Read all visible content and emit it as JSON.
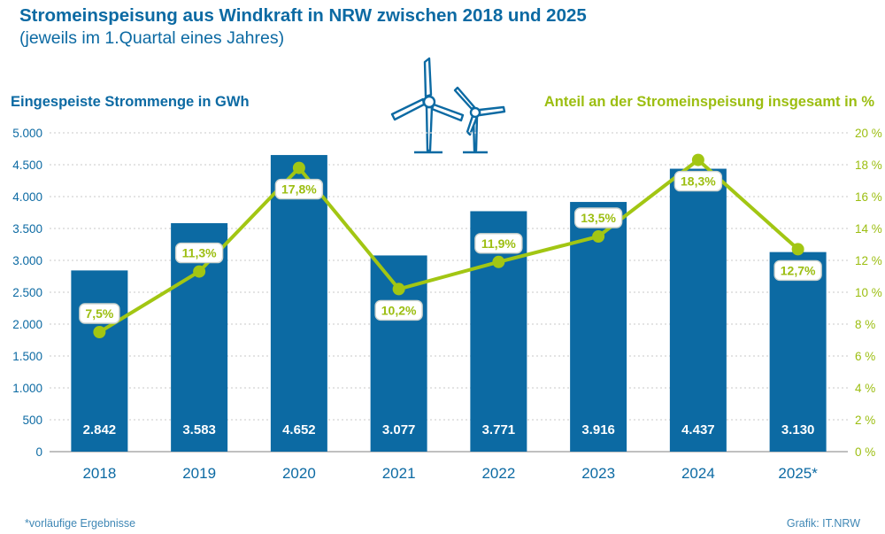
{
  "header": {
    "title": "Stromeinspeisung aus Windkraft in NRW zwischen 2018 und 2025",
    "subtitle": "(jeweils im 1.Quartal eines Jahres)"
  },
  "decoration": {
    "icon": "wind-turbines-icon"
  },
  "footer": {
    "note": "*vorläufige Ergebnisse",
    "credit": "Grafik: IT.NRW"
  },
  "colors": {
    "blue": "#0c6aa3",
    "green": "#a2c613",
    "green_text": "#9cbe11",
    "grid_line": "#d4d4d4",
    "baseline": "#9b9b9b",
    "badge_border": "#cdd3ce",
    "badge_fill": "#ffffff",
    "bar_label": "#ffffff"
  },
  "chart_data": {
    "type": "bar",
    "title": "Stromeinspeisung aus Windkraft in NRW zwischen 2018 und 2025 (jeweils im 1.Quartal eines Jahres)",
    "categories": [
      "2018",
      "2019",
      "2020",
      "2021",
      "2022",
      "2023",
      "2024",
      "2025*"
    ],
    "series": [
      {
        "name": "Eingespeiste Strommenge in GWh",
        "type": "bar",
        "axis": "left",
        "values": [
          2842,
          3583,
          4652,
          3077,
          3771,
          3916,
          4437,
          3130
        ],
        "labels": [
          "2.842",
          "3.583",
          "4.652",
          "3.077",
          "3.771",
          "3.916",
          "4.437",
          "3.130"
        ]
      },
      {
        "name": "Anteil an der Stromeinspeisung insgesamt in %",
        "type": "line",
        "axis": "right",
        "values": [
          7.5,
          11.3,
          17.8,
          10.2,
          11.9,
          13.5,
          18.3,
          12.7
        ],
        "labels": [
          "7,5%",
          "11,3%",
          "17,8%",
          "10,2%",
          "11,9%",
          "13,5%",
          "18,3%",
          "12,7%"
        ],
        "label_position": [
          "above",
          "above",
          "below",
          "below",
          "above",
          "above",
          "below",
          "below"
        ]
      }
    ],
    "left_axis": {
      "title": "Eingespeiste Strommenge in GWh",
      "min": 0,
      "max": 5000,
      "step": 500,
      "tick_labels": [
        "0",
        "500",
        "1.000",
        "1.500",
        "2.000",
        "2.500",
        "3.000",
        "3.500",
        "4.000",
        "4.500",
        "5.000"
      ]
    },
    "right_axis": {
      "title": "Anteil an der Stromeinspeisung insgesamt in %",
      "min": 0,
      "max": 20,
      "step": 2,
      "tick_labels": [
        "0 %",
        "2 %",
        "4 %",
        "6 %",
        "8 %",
        "10 %",
        "12 %",
        "14 %",
        "16 %",
        "18 %",
        "20 %"
      ]
    },
    "grid": "horizontal dashed",
    "legend": "none"
  }
}
